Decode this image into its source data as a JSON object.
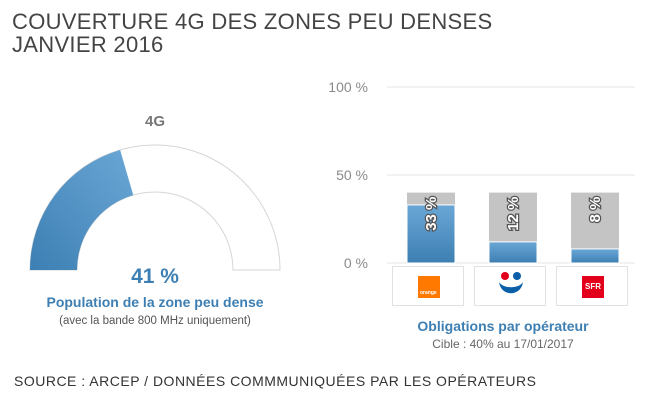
{
  "page": {
    "title_line1": "COUVERTURE 4G DES ZONES PEU DENSES",
    "title_line2": "JANVIER 2016",
    "source": "SOURCE : ARCEP / DONNÉES COMMMUNIQUÉES PAR LES OPÉRATEURS"
  },
  "colors": {
    "blue_dark": "#3d7fb3",
    "blue_light": "#6aa7d6",
    "gauge_bg": "#ffffff",
    "gray_bar": "#c4c4c4",
    "axis_text": "#8a8a8a",
    "grid": "#e6e6e6",
    "orange": "#ff7900",
    "sfr_red": "#e2001a",
    "bouygues_blue": "#0b5ea8"
  },
  "logos": {
    "orange": {
      "icon": "orange-logo-icon",
      "text": "orange"
    },
    "bouygues": {
      "icon": "bouygues-logo-icon"
    },
    "sfr": {
      "icon": "sfr-logo-icon",
      "text": "SFR"
    }
  },
  "chart_data": [
    {
      "type": "gauge",
      "title": "4G",
      "value": 41,
      "value_label": "41 %",
      "label": "Population de la zone peu dense",
      "sublabel": "(avec la bande 800 MHz uniquement)",
      "range": [
        0,
        100
      ]
    },
    {
      "type": "bar",
      "categories": [
        "Orange",
        "Bouygues Telecom",
        "SFR"
      ],
      "series": [
        {
          "role": "target",
          "values": [
            40,
            40,
            40
          ]
        },
        {
          "role": "actual",
          "values": [
            33,
            12,
            8
          ]
        }
      ],
      "data_labels": [
        "33 %",
        "12 %",
        "8 %"
      ],
      "y_ticks": [
        "0 %",
        "50 %",
        "100 %"
      ],
      "ylim": [
        0,
        100
      ],
      "xlabel": "Obligations par opérateur",
      "note": "Cible : 40% au 17/01/2017"
    }
  ]
}
